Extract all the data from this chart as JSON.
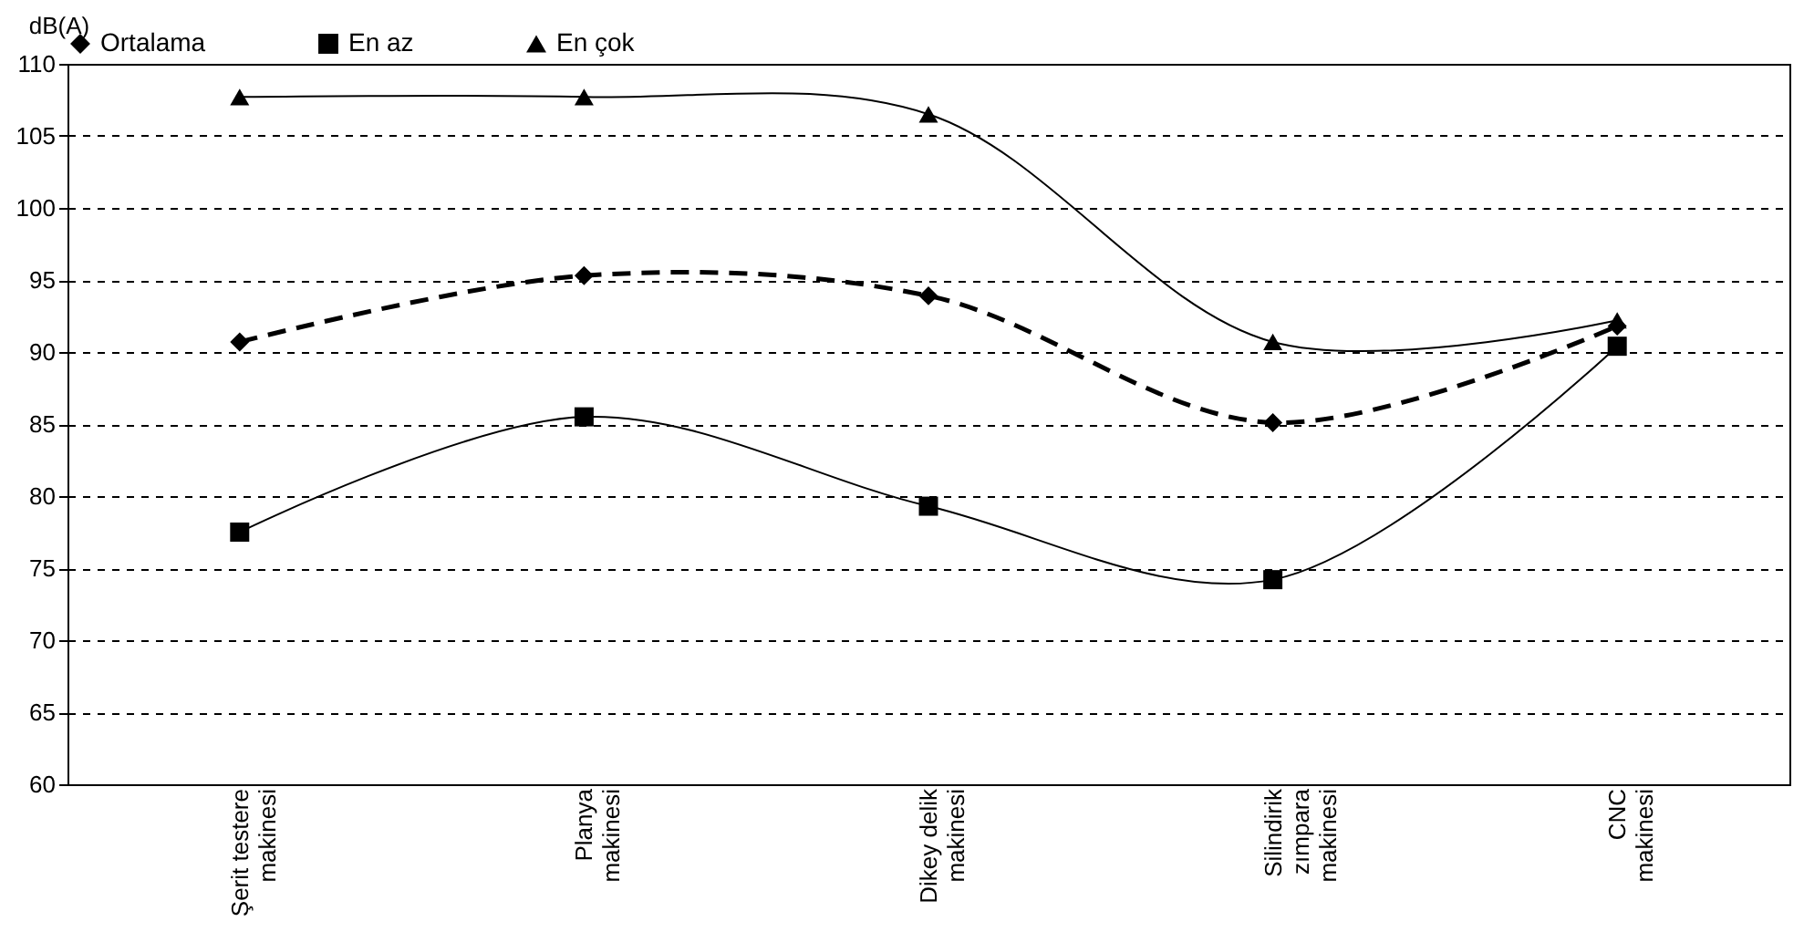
{
  "chart_data": {
    "type": "line",
    "ylabel": "dB(A)",
    "categories": [
      "Şerit testere\nmakinesi",
      "Planya\nmakinesi",
      "Dikey delik\nmakinesi",
      "Silindirik\nzımpara\nmakinesi",
      "CNC\nmakinesi"
    ],
    "series": [
      {
        "name": "Ortalama",
        "color": "#000000",
        "marker": "diamond",
        "line_style": "dashed",
        "values": [
          90.7,
          95.3,
          93.9,
          85.1,
          91.8
        ]
      },
      {
        "name": "En az",
        "color": "#000000",
        "marker": "square",
        "line_style": "solid",
        "values": [
          77.5,
          85.5,
          79.3,
          74.2,
          90.4
        ]
      },
      {
        "name": "En çok",
        "color": "#000000",
        "marker": "triangle",
        "line_style": "solid",
        "values": [
          107.7,
          107.7,
          106.5,
          90.7,
          92.2
        ]
      }
    ],
    "ylim": [
      60,
      110
    ],
    "yticks": [
      60,
      65,
      70,
      75,
      80,
      85,
      90,
      95,
      100,
      105,
      110
    ],
    "grid": "y",
    "legend": "top"
  }
}
